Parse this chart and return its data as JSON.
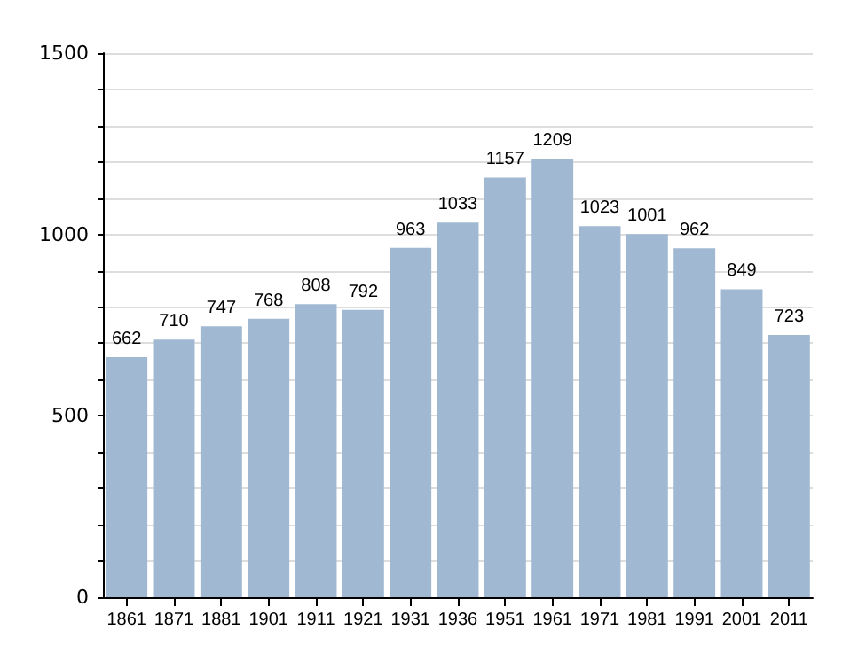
{
  "chart_data": {
    "type": "bar",
    "categories": [
      "1861",
      "1871",
      "1881",
      "1901",
      "1911",
      "1921",
      "1931",
      "1936",
      "1951",
      "1961",
      "1971",
      "1981",
      "1991",
      "2001",
      "2011"
    ],
    "values": [
      662,
      710,
      747,
      768,
      808,
      792,
      963,
      1033,
      1157,
      1209,
      1023,
      1001,
      962,
      849,
      723
    ],
    "color": "#a0b8d2",
    "data_labels": true,
    "grid": "y",
    "ylim": [
      0,
      1500
    ],
    "yticks": [
      0,
      {
        "value": 100,
        "label": null
      },
      {
        "value": 200,
        "label": null
      },
      {
        "value": 300,
        "label": null
      },
      {
        "value": 400,
        "label": null
      },
      500,
      {
        "value": 600,
        "label": null
      },
      {
        "value": 700,
        "label": null
      },
      {
        "value": 800,
        "label": null
      },
      {
        "value": 900,
        "label": null
      },
      1000,
      {
        "value": 1100,
        "label": null
      },
      {
        "value": 1200,
        "label": null
      },
      {
        "value": 1300,
        "label": null
      },
      {
        "value": 1400,
        "label": null
      },
      1500
    ]
  }
}
